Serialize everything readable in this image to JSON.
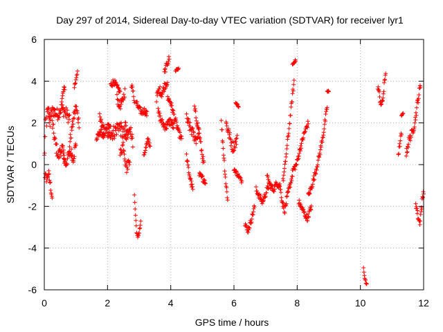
{
  "chart_data": {
    "type": "scatter",
    "title": "Day 297 of 2014, Sidereal Day-to-day VTEC variation (SDTVAR) for receiver lyr1",
    "xlabel": "GPS time / hours",
    "ylabel": "SDTVAR / TECUs",
    "xlim": [
      0,
      12
    ],
    "ylim": [
      -6,
      6
    ],
    "xticks": [
      0,
      2,
      4,
      6,
      8,
      10,
      12
    ],
    "xtick_labels": [
      "0",
      "2",
      "4",
      "6",
      "8",
      "10",
      "12"
    ],
    "yticks": [
      -6,
      -4,
      -2,
      0,
      2,
      4,
      6
    ],
    "ytick_labels": [
      "-6",
      "-4",
      "-2",
      "0",
      "2",
      "4",
      "6"
    ],
    "grid": true,
    "marker": "+",
    "color": "#ff0000",
    "segments": [
      {
        "x0": 0.0,
        "x1": 0.18,
        "y": [
          0.3,
          2.0,
          2.3,
          2.5,
          2.1
        ],
        "spread": 1.0
      },
      {
        "x0": 0.02,
        "x1": 0.25,
        "y": [
          -0.5,
          -0.7,
          -0.4,
          -1.0,
          -1.6
        ],
        "spread": 0.4
      },
      {
        "x0": 0.15,
        "x1": 0.8,
        "y": [
          2.2,
          2.6,
          2.4,
          2.7,
          2.5,
          2.2
        ],
        "spread": 0.6
      },
      {
        "x0": 0.25,
        "x1": 0.65,
        "y": [
          2.0,
          1.0,
          0.4,
          0.8,
          0.3
        ],
        "spread": 0.6
      },
      {
        "x0": 0.55,
        "x1": 0.65,
        "y": [
          3.0,
          3.5,
          3.7
        ],
        "spread": 0.3
      },
      {
        "x0": 0.6,
        "x1": 1.0,
        "y": [
          0.5,
          0.0,
          0.4,
          0.6,
          0.3,
          1.0
        ],
        "spread": 0.5
      },
      {
        "x0": 0.8,
        "x1": 1.1,
        "y": [
          1.0,
          2.0,
          2.8,
          2.0
        ],
        "spread": 0.5
      },
      {
        "x0": 0.95,
        "x1": 1.05,
        "y": [
          3.8,
          4.0,
          4.5
        ],
        "spread": 0.3
      },
      {
        "x0": 1.65,
        "x1": 1.9,
        "y": [
          1.2,
          1.6,
          1.3
        ],
        "spread": 0.3
      },
      {
        "x0": 1.75,
        "x1": 2.1,
        "y": [
          2.2,
          1.8,
          1.6,
          1.5,
          1.7
        ],
        "spread": 0.5
      },
      {
        "x0": 2.0,
        "x1": 2.6,
        "y": [
          1.8,
          1.5,
          1.6,
          1.9,
          1.5,
          1.2
        ],
        "spread": 0.7
      },
      {
        "x0": 2.1,
        "x1": 2.4,
        "y": [
          3.8,
          4.0,
          3.7,
          3.5
        ],
        "spread": 0.3
      },
      {
        "x0": 2.3,
        "x1": 2.55,
        "y": [
          3.2,
          2.8,
          3.0,
          3.5
        ],
        "spread": 0.4
      },
      {
        "x0": 2.4,
        "x1": 2.7,
        "y": [
          0.5,
          1.0,
          -0.2,
          0.3
        ],
        "spread": 0.5
      },
      {
        "x0": 2.55,
        "x1": 2.8,
        "y": [
          2.0,
          1.5,
          1.8,
          1.0
        ],
        "spread": 0.5
      },
      {
        "x0": 2.75,
        "x1": 2.85,
        "y": [
          3.8,
          3.7,
          3.4,
          3.0
        ],
        "spread": 0.2
      },
      {
        "x0": 2.85,
        "x1": 3.05,
        "y": [
          -1.5,
          -2.8,
          -3.6,
          -3.2,
          -2.8
        ],
        "spread": 0.3
      },
      {
        "x0": 2.9,
        "x1": 3.25,
        "y": [
          3.0,
          2.7,
          2.5,
          2.6,
          2.4
        ],
        "spread": 0.3
      },
      {
        "x0": 3.15,
        "x1": 3.35,
        "y": [
          0.5,
          0.8,
          1.2,
          0.9
        ],
        "spread": 0.3
      },
      {
        "x0": 3.55,
        "x1": 3.9,
        "y": [
          3.2,
          3.6,
          3.4,
          3.8,
          4.0
        ],
        "spread": 0.4
      },
      {
        "x0": 3.6,
        "x1": 4.1,
        "y": [
          2.5,
          2.0,
          1.8,
          2.1,
          1.8
        ],
        "spread": 0.4
      },
      {
        "x0": 3.8,
        "x1": 3.95,
        "y": [
          4.4,
          4.8,
          5.1
        ],
        "spread": 0.3
      },
      {
        "x0": 3.9,
        "x1": 4.35,
        "y": [
          3.2,
          3.0,
          2.5,
          2.0,
          1.5,
          1.2
        ],
        "spread": 0.3
      },
      {
        "x0": 4.15,
        "x1": 4.25,
        "y": [
          4.5,
          4.6
        ],
        "spread": 0.1
      },
      {
        "x0": 4.5,
        "x1": 4.9,
        "y": [
          2.2,
          1.8,
          1.5,
          1.2,
          1.6
        ],
        "spread": 0.5
      },
      {
        "x0": 4.5,
        "x1": 4.7,
        "y": [
          0.4,
          -0.3,
          -0.8,
          -1.2
        ],
        "spread": 0.3
      },
      {
        "x0": 4.75,
        "x1": 5.05,
        "y": [
          2.7,
          2.2,
          1.8,
          1.2,
          0.5,
          0.0
        ],
        "spread": 0.4
      },
      {
        "x0": 4.9,
        "x1": 5.1,
        "y": [
          -0.5,
          -0.8
        ],
        "spread": 0.3
      },
      {
        "x0": 5.6,
        "x1": 5.8,
        "y": [
          2.0,
          1.0,
          0.0,
          -1.0,
          -1.6
        ],
        "spread": 0.4
      },
      {
        "x0": 5.75,
        "x1": 6.1,
        "y": [
          2.0,
          1.6,
          1.2,
          0.8,
          1.0,
          1.2
        ],
        "spread": 0.5
      },
      {
        "x0": 6.0,
        "x1": 6.25,
        "y": [
          -0.2,
          -0.5,
          -0.8
        ],
        "spread": 0.2
      },
      {
        "x0": 6.05,
        "x1": 6.15,
        "y": [
          3.0,
          2.8
        ],
        "spread": 0.1
      },
      {
        "x0": 6.35,
        "x1": 6.65,
        "y": [
          -2.8,
          -3.2,
          -2.9,
          -2.5,
          -2.0
        ],
        "spread": 0.3
      },
      {
        "x0": 6.7,
        "x1": 7.1,
        "y": [
          -1.2,
          -1.5,
          -1.8,
          -1.4,
          -1.0
        ],
        "spread": 0.3
      },
      {
        "x0": 7.05,
        "x1": 7.45,
        "y": [
          -0.6,
          -1.0,
          -1.2,
          -0.9,
          -1.0
        ],
        "spread": 0.3
      },
      {
        "x0": 7.45,
        "x1": 7.85,
        "y": [
          -1.0,
          -1.8,
          -2.2,
          -1.5,
          -1.0,
          -0.5
        ],
        "spread": 0.3
      },
      {
        "x0": 7.55,
        "x1": 7.9,
        "y": [
          -0.8,
          0.0,
          1.0,
          2.0,
          3.0,
          4.0
        ],
        "spread": 0.3
      },
      {
        "x0": 7.85,
        "x1": 7.95,
        "y": [
          4.8,
          5.0
        ],
        "spread": 0.1
      },
      {
        "x0": 7.85,
        "x1": 8.35,
        "y": [
          -0.3,
          0.0,
          0.8,
          1.5,
          2.0
        ],
        "spread": 0.3
      },
      {
        "x0": 8.05,
        "x1": 8.45,
        "y": [
          -1.8,
          -2.2,
          -2.6,
          -2.0
        ],
        "spread": 0.3
      },
      {
        "x0": 8.35,
        "x1": 8.95,
        "y": [
          -1.5,
          -1.0,
          -0.3,
          0.5,
          1.5,
          2.8
        ],
        "spread": 0.3
      },
      {
        "x0": 8.95,
        "x1": 9.0,
        "y": [
          3.5
        ],
        "spread": 0.1
      },
      {
        "x0": 10.1,
        "x1": 10.2,
        "y": [
          -5.0,
          -5.5,
          -5.8
        ],
        "spread": 0.2
      },
      {
        "x0": 10.55,
        "x1": 10.8,
        "y": [
          3.8,
          3.2,
          2.8,
          3.5,
          4.5
        ],
        "spread": 0.4
      },
      {
        "x0": 11.2,
        "x1": 11.3,
        "y": [
          0.5,
          1.0,
          1.5
        ],
        "spread": 0.3
      },
      {
        "x0": 11.3,
        "x1": 11.35,
        "y": [
          2.3,
          2.5
        ],
        "spread": 0.1
      },
      {
        "x0": 11.45,
        "x1": 11.9,
        "y": [
          0.5,
          1.2,
          1.5,
          2.0,
          3.0,
          3.8
        ],
        "spread": 0.4
      },
      {
        "x0": 11.75,
        "x1": 12.0,
        "y": [
          -1.8,
          -2.4,
          -2.8,
          -2.0,
          -1.2
        ],
        "spread": 0.4
      }
    ]
  }
}
